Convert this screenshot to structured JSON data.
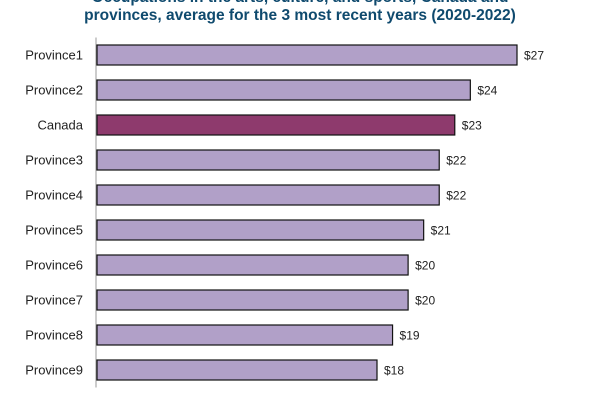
{
  "chart_data": {
    "type": "bar",
    "orientation": "horizontal",
    "title_lines": [
      "Occupations in the arts, culture, and sports, Canada and",
      "provinces, average for the 3 most recent years (2020-2022)"
    ],
    "categories": [
      "Province1",
      "Province2",
      "Canada",
      "Province3",
      "Province4",
      "Province5",
      "Province6",
      "Province7",
      "Province8",
      "Province9"
    ],
    "values": [
      27,
      24,
      23,
      22,
      22,
      21,
      20,
      20,
      19,
      18
    ],
    "value_labels": [
      "$27",
      "$24",
      "$23",
      "$22",
      "$22",
      "$21",
      "$20",
      "$20",
      "$19",
      "$18"
    ],
    "xlim": [
      0,
      31.5
    ],
    "grid": false,
    "colors": {
      "default_bar": "#b1a0c8",
      "highlight_bar": "#8e3a6d",
      "bar_outline": "#111111",
      "axis": "#999999"
    },
    "highlight_category": "Canada"
  }
}
